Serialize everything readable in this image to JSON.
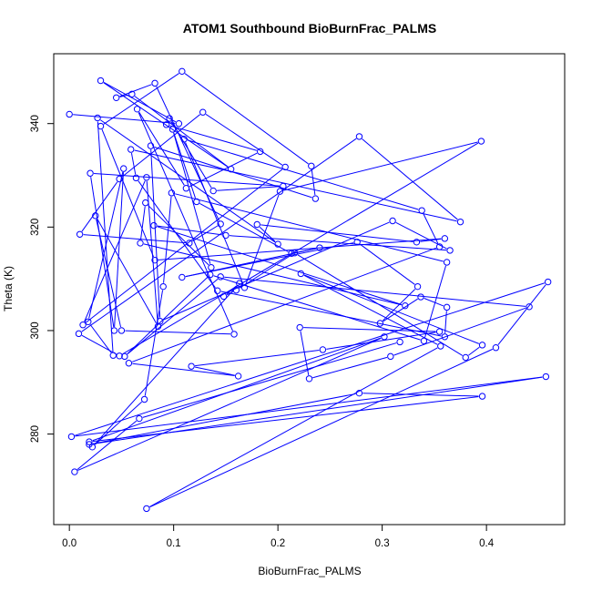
{
  "chart_data": {
    "type": "line",
    "title": "ATOM1 Southbound BioBurnFrac_PALMS",
    "xlabel": "BioBurnFrac_PALMS",
    "ylabel": "Theta (K)",
    "xlim": [
      -0.015,
      0.475
    ],
    "ylim": [
      262.5,
      353.5
    ],
    "xticks": [
      0.0,
      0.1,
      0.2,
      0.3,
      0.4
    ],
    "xtick_labels": [
      "0.0",
      "0.1",
      "0.2",
      "0.3",
      "0.4"
    ],
    "yticks": [
      280,
      300,
      320,
      340
    ],
    "ytick_labels": [
      "280",
      "300",
      "320",
      "340"
    ],
    "grid": false,
    "legend": "none",
    "series_color": "#0000ff",
    "marker": "open-circle",
    "series": [
      {
        "x": [
          0.0,
          0.105,
          0.03,
          0.155,
          0.06,
          0.045,
          0.082,
          0.145,
          0.115,
          0.01,
          0.048,
          0.128,
          0.207,
          0.013,
          0.074,
          0.085,
          0.025,
          0.05,
          0.158,
          0.065,
          0.112,
          0.183,
          0.093,
          0.096,
          0.138,
          0.205,
          0.02,
          0.043,
          0.052,
          0.018,
          0.042,
          0.027,
          0.2,
          0.18,
          0.333,
          0.36,
          0.082,
          0.03,
          0.108,
          0.232,
          0.236,
          0.078,
          0.087,
          0.31,
          0.365,
          0.15,
          0.081,
          0.322,
          0.068,
          0.073,
          0.136,
          0.099,
          0.122,
          0.213,
          0.24,
          0.108,
          0.276,
          0.334,
          0.298,
          0.337,
          0.362,
          0.36,
          0.142,
          0.064,
          0.059,
          0.375,
          0.278,
          0.009,
          0.048,
          0.395,
          0.202,
          0.168,
          0.11,
          0.338,
          0.355,
          0.057,
          0.162,
          0.117,
          0.243,
          0.355,
          0.221,
          0.23,
          0.308,
          0.441,
          0.145,
          0.053,
          0.135,
          0.34,
          0.362,
          0.098,
          0.09,
          0.072,
          0.022,
          0.163,
          0.148,
          0.16,
          0.216,
          0.38,
          0.396,
          0.222,
          0.356,
          0.074,
          0.409,
          0.459,
          0.002,
          0.457,
          0.019,
          0.278,
          0.396,
          0.019,
          0.302,
          0.005,
          0.067,
          0.317
        ],
        "y": [
          341.8,
          340.0,
          348.3,
          331.2,
          345.7,
          345.0,
          347.8,
          320.6,
          316.9,
          318.6,
          329.3,
          342.2,
          331.6,
          301.1,
          329.6,
          300.8,
          322.2,
          300.0,
          299.3,
          342.8,
          327.5,
          334.6,
          339.8,
          341.0,
          327.0,
          327.9,
          330.4,
          300.0,
          331.3,
          301.7,
          295.2,
          341.1,
          316.7,
          320.5,
          317.1,
          317.8,
          313.6,
          339.5,
          350.1,
          331.8,
          325.5,
          335.7,
          301.8,
          321.2,
          315.5,
          318.4,
          320.3,
          304.8,
          316.9,
          324.7,
          312.2,
          338.9,
          324.9,
          314.9,
          316.0,
          310.3,
          317.1,
          308.5,
          301.4,
          306.5,
          304.5,
          298.8,
          307.7,
          329.5,
          335.0,
          321.0,
          337.5,
          299.4,
          295.1,
          336.6,
          326.9,
          308.3,
          337.0,
          323.2,
          316.2,
          293.7,
          291.2,
          293.1,
          296.3,
          299.8,
          300.6,
          290.7,
          295.0,
          304.6,
          310.4,
          295.0,
          310.8,
          298.0,
          313.2,
          326.6,
          308.5,
          286.7,
          277.5,
          309.1,
          306.6,
          307.8,
          315.0,
          294.8,
          297.2,
          311.0,
          297.0,
          265.6,
          296.7,
          309.4,
          279.5,
          291.1,
          278.0,
          287.9,
          287.3,
          278.5,
          298.8,
          272.7,
          283.0,
          297.8
        ]
      }
    ]
  }
}
